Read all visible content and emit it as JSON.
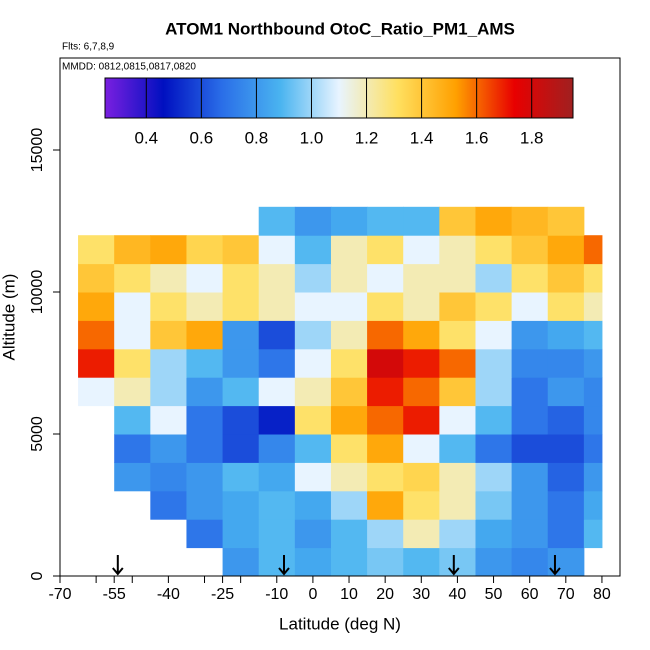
{
  "chart_data": {
    "type": "heatmap",
    "title": "ATOM1 Northbound OtoC_Ratio_PM1_AMS",
    "flights": "Flts: 6,7,8,9",
    "dates": "MMDD: 0812,0815,0817,0820",
    "x_label": "Latitude (deg N)",
    "y_label": "Altitude (m)",
    "xlim": [
      -70,
      85
    ],
    "ylim": [
      0,
      18240
    ],
    "xticks": [
      -70,
      -55,
      -40,
      -25,
      -10,
      0,
      10,
      20,
      30,
      40,
      50,
      60,
      70,
      80
    ],
    "xminor": [
      -60,
      -50,
      -30,
      -20
    ],
    "yticks": [
      0,
      5000,
      10000,
      15000
    ],
    "lat_bins": [
      -65,
      -55,
      -45,
      -35,
      -25,
      -15,
      -5,
      5,
      15,
      25,
      35,
      45,
      55,
      65,
      75,
      80
    ],
    "alt_bins": [
      0,
      1000,
      2000,
      3000,
      4000,
      5000,
      6000,
      7000,
      8000,
      9000,
      10000,
      11000,
      12000,
      13000
    ],
    "values": [
      [
        null,
        null,
        null,
        null,
        0.8,
        0.9,
        0.85,
        0.9,
        0.95,
        0.9,
        0.95,
        0.8,
        0.75,
        0.8,
        null
      ],
      [
        null,
        null,
        null,
        0.7,
        0.85,
        0.9,
        0.8,
        0.9,
        1.0,
        1.2,
        1.0,
        0.85,
        0.8,
        0.7,
        0.9
      ],
      [
        null,
        null,
        0.7,
        0.8,
        0.85,
        0.9,
        0.85,
        1.0,
        1.5,
        1.3,
        1.2,
        0.95,
        0.8,
        0.7,
        0.85
      ],
      [
        null,
        0.8,
        0.75,
        0.8,
        0.9,
        0.85,
        1.1,
        1.2,
        1.3,
        1.35,
        1.2,
        1.0,
        0.8,
        0.65,
        0.8
      ],
      [
        null,
        0.7,
        0.8,
        0.7,
        0.6,
        0.75,
        0.9,
        1.3,
        1.5,
        1.1,
        0.9,
        0.7,
        0.6,
        0.6,
        0.7
      ],
      [
        null,
        0.9,
        1.1,
        0.7,
        0.6,
        0.5,
        1.3,
        1.5,
        1.6,
        1.7,
        1.1,
        0.9,
        0.7,
        0.65,
        0.75
      ],
      [
        1.1,
        1.2,
        1.0,
        0.8,
        0.9,
        1.1,
        1.2,
        1.4,
        1.7,
        1.6,
        1.4,
        1.0,
        0.7,
        0.8,
        0.75
      ],
      [
        1.7,
        1.3,
        1.0,
        0.9,
        0.8,
        0.7,
        1.1,
        1.3,
        1.8,
        1.7,
        1.6,
        1.0,
        0.75,
        0.75,
        0.8
      ],
      [
        1.6,
        1.1,
        1.4,
        1.5,
        0.8,
        0.6,
        1.0,
        1.2,
        1.6,
        1.5,
        1.3,
        1.1,
        0.8,
        0.85,
        0.9
      ],
      [
        1.5,
        1.1,
        1.3,
        1.2,
        1.3,
        1.2,
        1.1,
        1.1,
        1.3,
        1.2,
        1.4,
        1.3,
        1.1,
        1.3,
        1.2
      ],
      [
        1.4,
        1.3,
        1.2,
        1.1,
        1.3,
        1.2,
        1.0,
        1.2,
        1.1,
        1.2,
        1.2,
        1.0,
        1.3,
        1.4,
        1.3
      ],
      [
        1.3,
        1.45,
        1.5,
        1.35,
        1.4,
        1.1,
        0.9,
        1.2,
        1.3,
        1.1,
        1.2,
        1.3,
        1.4,
        1.5,
        1.6
      ],
      [
        null,
        null,
        null,
        null,
        null,
        0.9,
        0.8,
        0.85,
        0.9,
        0.9,
        1.4,
        1.5,
        1.45,
        1.4,
        null
      ]
    ],
    "arrows": [
      -54,
      -8,
      39,
      67
    ],
    "clim": [
      0.25,
      1.95
    ],
    "cticks": [
      0.4,
      0.6,
      0.8,
      {
        "value": 1,
        "label": "1.0"
      },
      1.2,
      1.4,
      1.6,
      1.8
    ],
    "colors": [
      "#7a1fe0",
      "#0010c0",
      "#2a6ee8",
      "#4ab4f0",
      "#e8f4ff",
      "#ffe060",
      "#ffa000",
      "#e80000",
      "#a02020"
    ]
  }
}
